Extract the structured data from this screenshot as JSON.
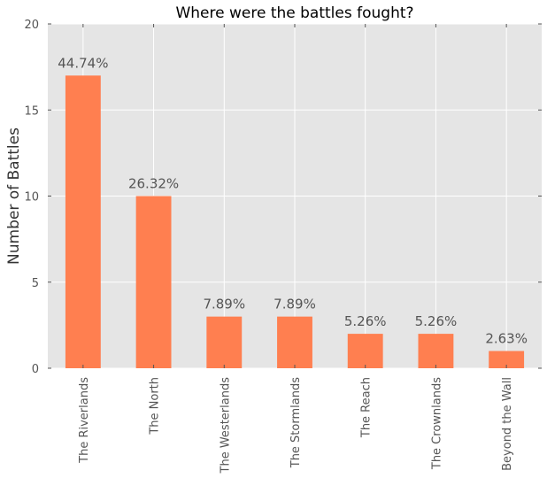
{
  "chart_data": {
    "type": "bar",
    "title": "Where were the battles fought?",
    "xlabel": "",
    "ylabel": "Number of Battles",
    "categories": [
      "The Riverlands",
      "The North",
      "The Westerlands",
      "The Stormlands",
      "The Reach",
      "The Crownlands",
      "Beyond the Wall"
    ],
    "values": [
      17,
      10,
      3,
      3,
      2,
      2,
      1
    ],
    "data_labels": [
      "44.74%",
      "26.32%",
      "7.89%",
      "7.89%",
      "5.26%",
      "5.26%",
      "2.63%"
    ],
    "ylim": [
      0,
      20
    ],
    "yticks": [
      0,
      5,
      10,
      15,
      20
    ],
    "grid": true,
    "bar_color": "#ff7f50",
    "background_color": "#e5e5e5"
  }
}
